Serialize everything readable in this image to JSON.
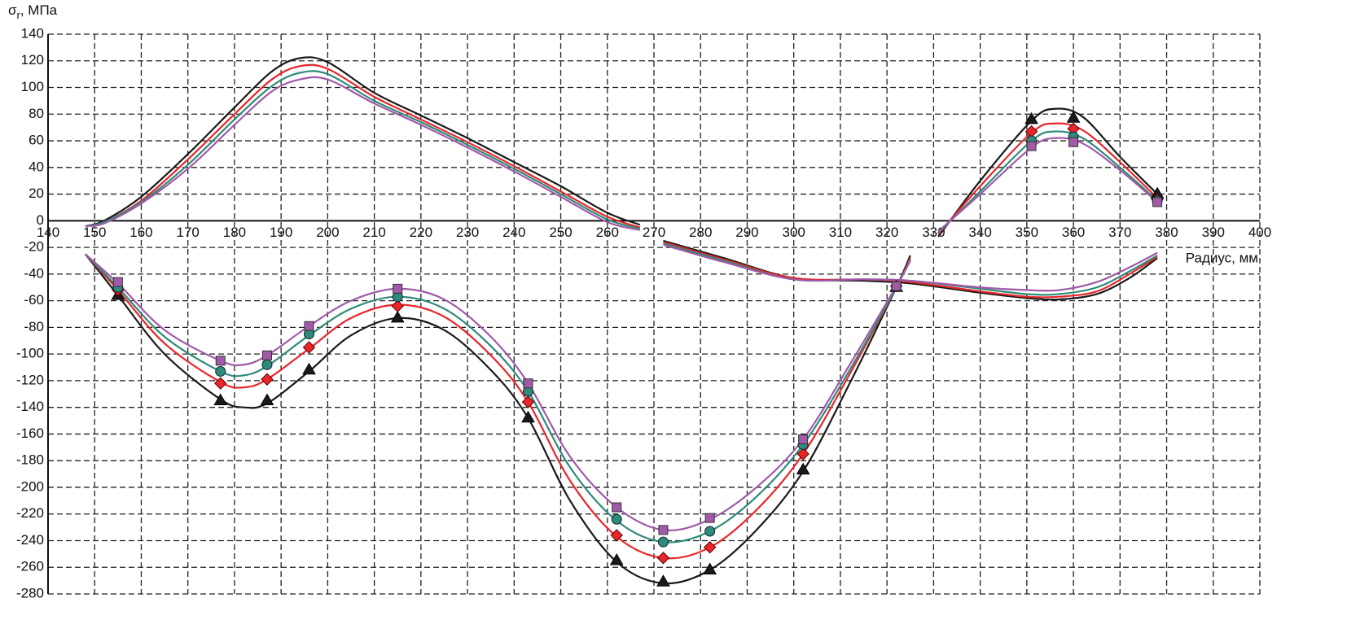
{
  "chart_data": {
    "type": "line",
    "ylabel_parts": [
      "σ",
      "r",
      ", МПа"
    ],
    "xlabel": "Радиус, мм",
    "xlim": [
      140,
      400
    ],
    "xticks": [
      140,
      150,
      160,
      170,
      180,
      190,
      200,
      210,
      220,
      230,
      240,
      250,
      260,
      270,
      280,
      290,
      300,
      310,
      320,
      330,
      340,
      350,
      360,
      370,
      380,
      390,
      400
    ],
    "ylim": [
      -280,
      140
    ],
    "yticks": [
      -280,
      -260,
      -240,
      -220,
      -200,
      -180,
      -160,
      -140,
      -120,
      -100,
      -80,
      -60,
      -40,
      -20,
      0,
      20,
      40,
      60,
      80,
      100,
      120,
      140
    ],
    "grid": true,
    "x": [
      148,
      152,
      160,
      170,
      180,
      188,
      194,
      200,
      210,
      220,
      230,
      240,
      250,
      260,
      267,
      null,
      272,
      285,
      300,
      315,
      325,
      340,
      350,
      357,
      365,
      372,
      378,
      null,
      148,
      155,
      165,
      177,
      182,
      187,
      196,
      205,
      215,
      225,
      235,
      243,
      252,
      262,
      272,
      282,
      292,
      302,
      312,
      322,
      325,
      null,
      331,
      340,
      351,
      356,
      362,
      370,
      378
    ],
    "marker_x": [
      155,
      177,
      187,
      196,
      215,
      243,
      262,
      272,
      282,
      302,
      322,
      351,
      360,
      378
    ],
    "series": [
      {
        "color": "#1a1a1a",
        "marker": "triangle",
        "values": [
          -4,
          0,
          18,
          50,
          85,
          112,
          122,
          119,
          96,
          79,
          62,
          44,
          26,
          6,
          -3,
          null,
          -15,
          -28,
          -43,
          -45,
          -47,
          -54,
          -58,
          -59,
          -55,
          -43,
          -28,
          null,
          -25,
          -56,
          -100,
          -134,
          -140,
          -137,
          -113,
          -86,
          -73,
          -82,
          -112,
          -148,
          -210,
          -256,
          -272,
          -262,
          -232,
          -188,
          -122,
          -50,
          -26,
          null,
          -12,
          30,
          75,
          84,
          78,
          48,
          20
        ],
        "marker_values": [
          -56,
          -135,
          -135,
          -112,
          -73,
          -148,
          -255,
          -271,
          -262,
          -187,
          -50,
          76,
          77,
          20
        ]
      },
      {
        "color": "#e8262a",
        "marker": "diamond",
        "values": [
          -4,
          -1,
          15,
          46,
          80,
          106,
          116,
          114,
          93,
          76,
          59,
          41,
          22,
          3,
          -5,
          null,
          -16,
          -29,
          -43,
          -44,
          -46,
          -53,
          -57,
          -57,
          -53,
          -40,
          -27,
          null,
          -25,
          -52,
          -92,
          -121,
          -125,
          -119,
          -96,
          -73,
          -63,
          -72,
          -101,
          -136,
          -195,
          -237,
          -253,
          -245,
          -217,
          -175,
          -115,
          -50,
          -28,
          null,
          -10,
          26,
          66,
          73,
          68,
          44,
          17
        ],
        "marker_values": [
          -52,
          -122,
          -119,
          -95,
          -64,
          -136,
          -236,
          -253,
          -245,
          -175,
          -49,
          67,
          69,
          16
        ]
      },
      {
        "color": "#2e8b7a",
        "marker": "circle",
        "values": [
          -4,
          -1,
          14,
          42,
          76,
          101,
          111,
          110,
          90,
          74,
          57,
          39,
          20,
          1,
          -6,
          null,
          -17,
          -30,
          -44,
          -44,
          -45,
          -51,
          -55,
          -55,
          -50,
          -38,
          -26,
          null,
          -25,
          -50,
          -87,
          -113,
          -116,
          -109,
          -86,
          -66,
          -57,
          -66,
          -94,
          -128,
          -185,
          -225,
          -241,
          -233,
          -207,
          -168,
          -112,
          -50,
          -29,
          null,
          -9,
          22,
          60,
          67,
          62,
          40,
          15
        ],
        "marker_values": [
          -50,
          -113,
          -108,
          -85,
          -57,
          -128,
          -224,
          -241,
          -233,
          -168,
          -49,
          60,
          63,
          15
        ]
      },
      {
        "color": "#a05aa8",
        "marker": "square",
        "values": [
          -4,
          -2,
          13,
          39,
          72,
          97,
          106,
          106,
          88,
          72,
          55,
          37,
          18,
          -1,
          -7,
          null,
          -18,
          -31,
          -44,
          -44,
          -45,
          -50,
          -52,
          -52,
          -46,
          -35,
          -24,
          null,
          -25,
          -47,
          -82,
          -105,
          -108,
          -101,
          -79,
          -60,
          -51,
          -59,
          -87,
          -122,
          -177,
          -215,
          -232,
          -224,
          -200,
          -164,
          -108,
          -49,
          -30,
          null,
          -8,
          20,
          55,
          62,
          58,
          38,
          14
        ],
        "marker_values": [
          -46,
          -105,
          -101,
          -79,
          -51,
          -122,
          -215,
          -232,
          -223,
          -164,
          -49,
          56,
          59,
          14
        ]
      }
    ]
  }
}
